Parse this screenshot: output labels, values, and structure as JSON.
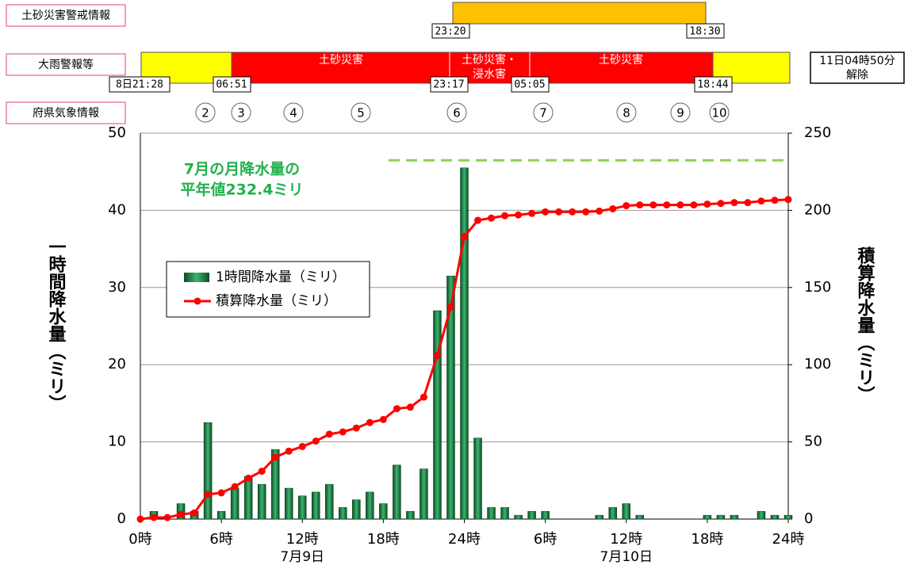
{
  "timeline": {
    "row_labels": [
      "土砂災害警戒情報",
      "大雨警報等",
      "府県気象情報"
    ],
    "sediment_alert": {
      "start": "23:20",
      "end": "18:30"
    },
    "heavy_rain": {
      "start": "8日21:28",
      "times": [
        "06:51",
        "23:17",
        "05:05",
        "18:44"
      ],
      "segments": [
        "土砂災害",
        "土砂災害・",
        "浸水害",
        "土砂災害"
      ],
      "lifted": [
        "11日04時50分",
        "解除"
      ]
    },
    "info_numbers": [
      2,
      3,
      4,
      5,
      6,
      7,
      8,
      9,
      10
    ]
  },
  "chart_data": {
    "type": "bar",
    "y_label": "一時間降水量（ミリ）",
    "y2_label": "積算降水量（ミリ）",
    "x": [
      0,
      1,
      2,
      3,
      4,
      5,
      6,
      7,
      8,
      9,
      10,
      11,
      12,
      13,
      14,
      15,
      16,
      17,
      18,
      19,
      20,
      21,
      22,
      23,
      24,
      25,
      26,
      27,
      28,
      29,
      30,
      31,
      32,
      33,
      34,
      35,
      36,
      37,
      38,
      39,
      40,
      41,
      42,
      43,
      44,
      45,
      46,
      47,
      48
    ],
    "series": [
      {
        "name": "1時間降水量（ミリ）",
        "type": "bar",
        "color": "#127a3a",
        "values": [
          0,
          1,
          0,
          2,
          1,
          12.5,
          1,
          4,
          5.5,
          4.5,
          9,
          4,
          3,
          3.5,
          4.5,
          1.5,
          2.5,
          3.5,
          2,
          7,
          1,
          6.5,
          27,
          31.5,
          45.5,
          10.5,
          1.5,
          1.5,
          0.5,
          1,
          1,
          0,
          0,
          0,
          0.5,
          1.5,
          2,
          0.5,
          0,
          0,
          0,
          0,
          0.5,
          0.5,
          0.5,
          0,
          1,
          0.5,
          0.5
        ]
      },
      {
        "name": "積算降水量（ミリ）",
        "type": "line",
        "axis": "y2",
        "color": "#ff0000",
        "values": [
          0,
          1,
          1,
          3,
          4,
          16,
          17,
          21,
          26.5,
          31,
          40,
          44,
          47,
          50.5,
          55,
          56.5,
          59,
          62.5,
          64.5,
          71.5,
          72.5,
          79,
          106,
          137.5,
          183,
          193.5,
          195,
          196.5,
          197,
          198,
          199,
          199,
          199,
          199,
          199.5,
          201,
          203,
          203.5,
          203.5,
          203.5,
          203.5,
          203.5,
          204,
          204.5,
          205,
          205,
          206,
          206.5,
          207
        ]
      }
    ],
    "xlim": [
      0,
      48
    ],
    "xticks": [
      {
        "value": 0,
        "label": "0時"
      },
      {
        "value": 6,
        "label": "6時"
      },
      {
        "value": 12,
        "label": "12時"
      },
      {
        "value": 18,
        "label": "18時"
      },
      {
        "value": 24,
        "label": "24時"
      },
      {
        "value": 30,
        "label": "6時"
      },
      {
        "value": 36,
        "label": "12時"
      },
      {
        "value": 42,
        "label": "18時"
      },
      {
        "value": 48,
        "label": "24時"
      }
    ],
    "date_labels": [
      "7月9日",
      "7月10日"
    ],
    "ylim": [
      0,
      50
    ],
    "yticks": [
      0,
      10,
      20,
      30,
      40,
      50
    ],
    "y2lim": [
      0,
      250
    ],
    "y2ticks": [
      0,
      50,
      100,
      150,
      200,
      250
    ],
    "grid": true,
    "reference_line": {
      "value": 232.4,
      "axis": "y2",
      "color": "#8fd14f"
    },
    "annotation": [
      "7月の月降水量の",
      "平年値232.4ミリ"
    ]
  }
}
